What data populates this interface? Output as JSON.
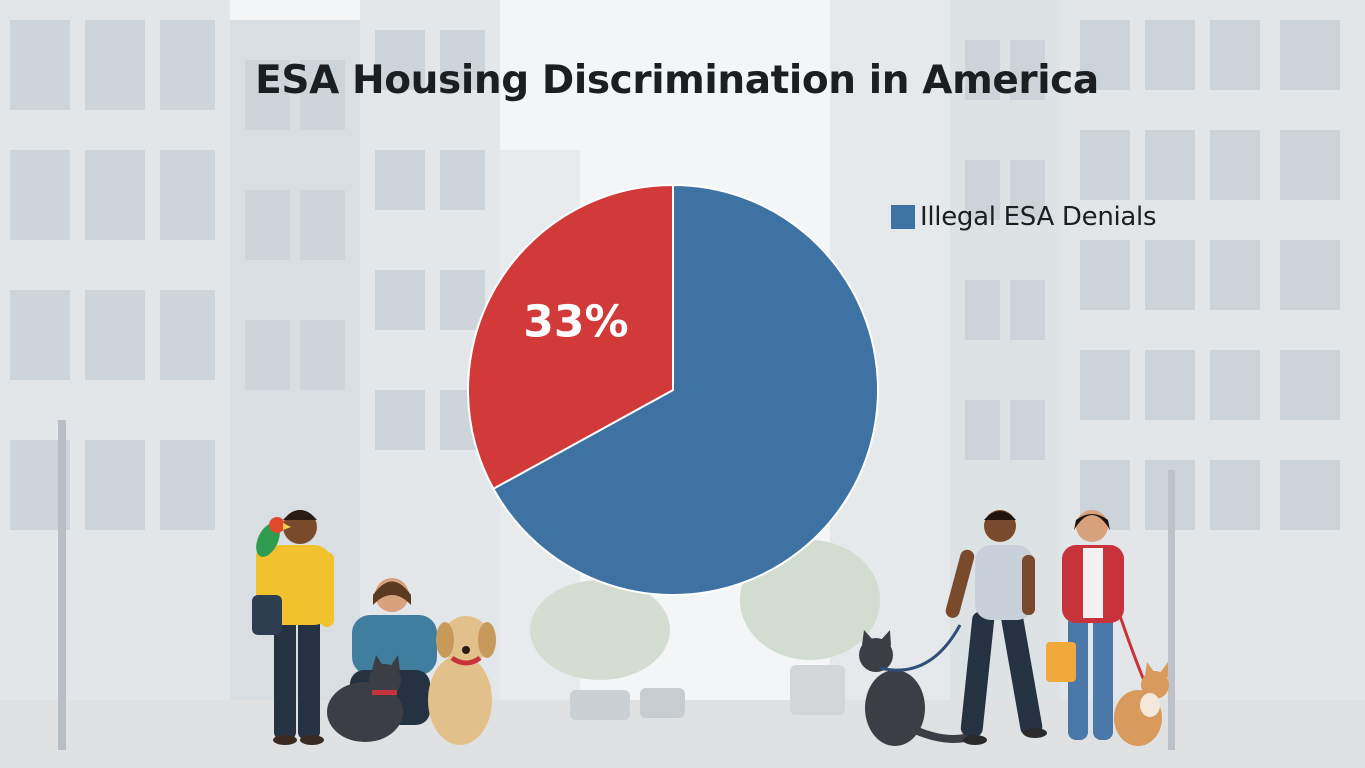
{
  "chart_data": {
    "type": "pie",
    "title": "ESA Housing Discrimination in America",
    "slices": [
      {
        "label": "Illegal ESA Denials",
        "value": 67,
        "color": "#3d72a2",
        "data_label": ""
      },
      {
        "label": "",
        "value": 33,
        "color": "#d23a3a",
        "data_label": "33%"
      }
    ],
    "legend": {
      "entries": [
        "Illegal ESA Denials"
      ],
      "placement": "right"
    }
  },
  "colors": {
    "sky": "#f4f5f6",
    "building_light": "#e2e6e9",
    "building_mid": "#d4d9dd",
    "window": "#c3cbd2",
    "street": "#dfe1e2",
    "skin_dark": "#7a4a2c",
    "skin_light": "#d9a27e",
    "shirt_yellow": "#f2c12e",
    "shirt_teal": "#3f7e9e",
    "jacket_red": "#c8323a",
    "jeans": "#4a78a8",
    "trousers_dark": "#253241",
    "dog_tan": "#e2c08a",
    "cat_dark": "#3b3f45",
    "cat_orange": "#d99a5e"
  },
  "scene": {
    "icons": [
      "person-with-parrot",
      "parrot",
      "woman-with-cat",
      "black-cat",
      "golden-dog",
      "gray-cat-on-leash",
      "man-with-backpack",
      "woman-in-red-jacket",
      "orange-cat-on-leash"
    ]
  }
}
